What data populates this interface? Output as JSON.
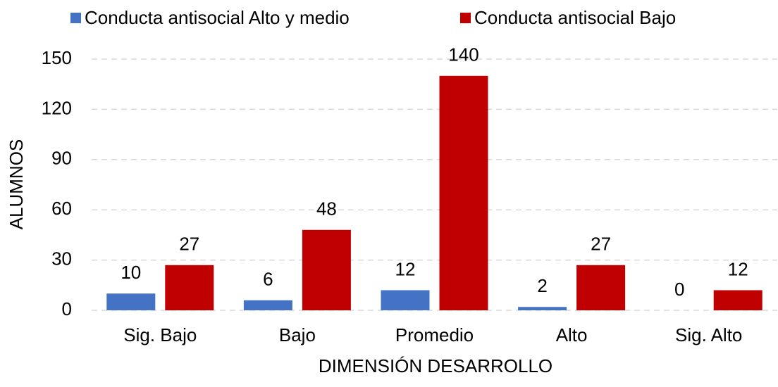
{
  "chart_data": {
    "type": "bar",
    "categories": [
      "Sig. Bajo",
      "Bajo",
      "Promedio",
      "Alto",
      "Sig. Alto"
    ],
    "series": [
      {
        "name": "Conducta antisocial Alto y medio",
        "color": "#4472c4",
        "values": [
          10,
          6,
          12,
          2,
          0
        ]
      },
      {
        "name": "Conducta antisocial Bajo",
        "color": "#c00000",
        "values": [
          27,
          48,
          140,
          27,
          12
        ]
      }
    ],
    "ylim": [
      0,
      150
    ],
    "yticks": [
      0,
      30,
      60,
      90,
      120,
      150
    ],
    "grid": true,
    "legend": "top",
    "xlabel": "DIMENSIÓN DESARROLLO",
    "ylabel": "ALUMNOS"
  }
}
